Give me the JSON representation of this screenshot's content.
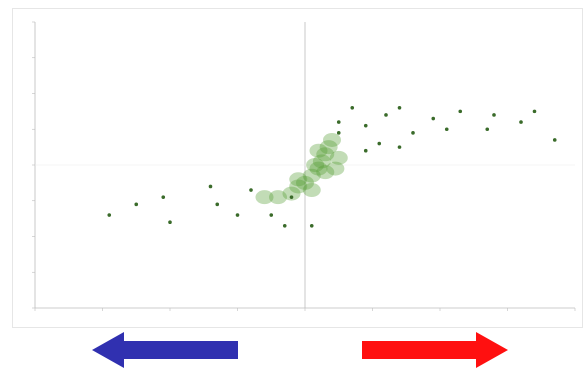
{
  "chart_data": {
    "type": "scatter",
    "title": "",
    "xlabel": "",
    "ylabel": "",
    "xlim": [
      -4,
      4
    ],
    "ylim": [
      -4,
      4
    ],
    "grid": false,
    "marker_color": "#3a6b2a",
    "dense_color": "#4f9a2e",
    "axis_color": "#bcbcbc",
    "points": [
      {
        "x": 0.7,
        "y": 1.6
      },
      {
        "x": 1.4,
        "y": 1.6
      },
      {
        "x": 1.2,
        "y": 1.4
      },
      {
        "x": 2.3,
        "y": 1.5
      },
      {
        "x": 2.8,
        "y": 1.4
      },
      {
        "x": 3.4,
        "y": 1.5
      },
      {
        "x": 3.2,
        "y": 1.2
      },
      {
        "x": 2.7,
        "y": 1.0
      },
      {
        "x": 3.7,
        "y": 0.7
      },
      {
        "x": 2.1,
        "y": 1.0
      },
      {
        "x": 1.6,
        "y": 0.9
      },
      {
        "x": 1.1,
        "y": 0.6
      },
      {
        "x": 0.9,
        "y": 0.4
      },
      {
        "x": 1.4,
        "y": 0.5
      },
      {
        "x": 0.5,
        "y": 0.9
      },
      {
        "x": -2.9,
        "y": -1.4
      },
      {
        "x": -2.5,
        "y": -1.1
      },
      {
        "x": -2.1,
        "y": -0.9
      },
      {
        "x": -2.0,
        "y": -1.6
      },
      {
        "x": -1.3,
        "y": -1.1
      },
      {
        "x": -1.0,
        "y": -1.4
      },
      {
        "x": -0.8,
        "y": -0.7
      },
      {
        "x": -0.5,
        "y": -1.4
      },
      {
        "x": -0.3,
        "y": -1.7
      },
      {
        "x": 0.1,
        "y": -1.7
      },
      {
        "x": -1.4,
        "y": -0.6
      },
      {
        "x": -0.2,
        "y": -0.9
      },
      {
        "x": 0.5,
        "y": 1.2
      },
      {
        "x": 0.9,
        "y": 1.1
      },
      {
        "x": 1.9,
        "y": 1.3
      }
    ]
  },
  "arrows": [
    {
      "direction": "left",
      "color": "#3030b0"
    },
    {
      "direction": "right",
      "color": "#ff1010"
    }
  ]
}
